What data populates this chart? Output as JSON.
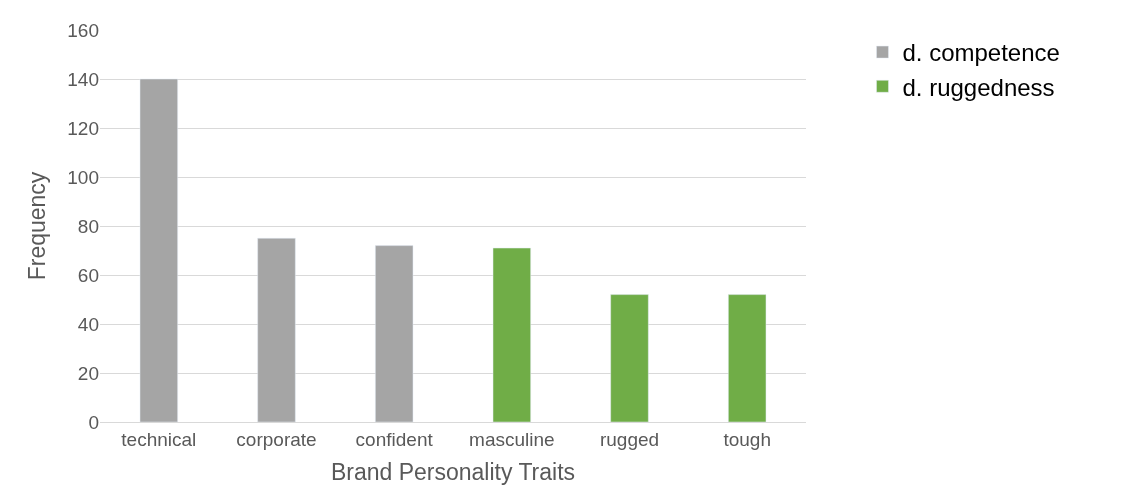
{
  "chart_data": {
    "type": "bar",
    "xlabel": "Brand Personality Traits",
    "ylabel": "Frequency",
    "categories": [
      "technical",
      "corporate",
      "confident",
      "masculine",
      "rugged",
      "tough"
    ],
    "series": [
      {
        "name": "d. competence",
        "color": "#a5a5a5",
        "values": [
          140,
          75,
          72,
          null,
          null,
          null
        ]
      },
      {
        "name": "d. ruggedness",
        "color": "#70ad47",
        "values": [
          null,
          null,
          null,
          71,
          52,
          52
        ]
      }
    ],
    "ylim": [
      0,
      160
    ],
    "yticks": [
      0,
      20,
      40,
      60,
      80,
      100,
      120,
      140,
      160
    ],
    "grid": "y",
    "legend": "top right"
  }
}
